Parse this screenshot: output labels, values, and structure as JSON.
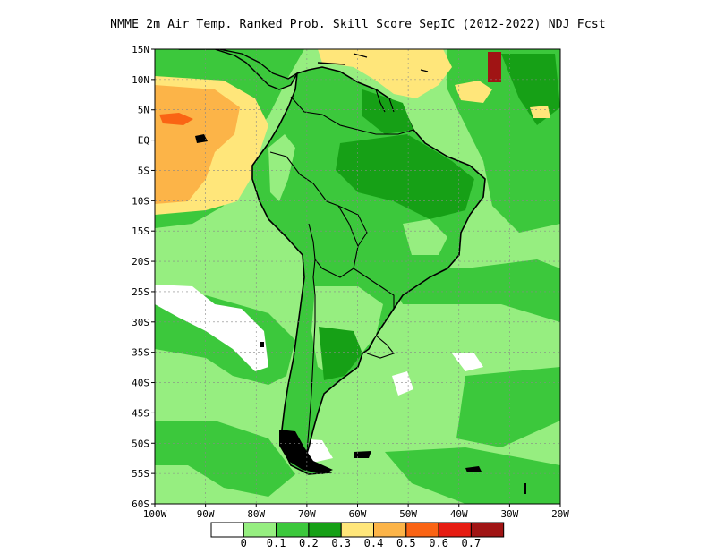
{
  "title": "NMME  2m Air Temp. Ranked Prob. Skill Score SepIC (2012-2022) NDJ Fcst",
  "map": {
    "lat_labels": [
      "15N",
      "10N",
      "5N",
      "EQ",
      "5S",
      "10S",
      "15S",
      "20S",
      "25S",
      "30S",
      "35S",
      "40S",
      "45S",
      "50S",
      "55S",
      "60S"
    ],
    "lon_labels": [
      "100W",
      "90W",
      "80W",
      "70W",
      "60W",
      "50W",
      "40W",
      "30W",
      "20W"
    ],
    "lat_range": [
      15,
      -60
    ],
    "lon_range": [
      -100,
      -20
    ],
    "grid": true
  },
  "legend": {
    "colors": [
      "#ffffff",
      "#96ee80",
      "#3cc83c",
      "#16a016",
      "#ffe67a",
      "#fcb448",
      "#fa6414",
      "#e61c12",
      "#a01414"
    ],
    "labels": [
      "0",
      "0.1",
      "0.2",
      "0.3",
      "0.4",
      "0.5",
      "0.6",
      "0.7"
    ]
  },
  "colors": {
    "ocean_base": "#96ee80",
    "land_base": "#3cc83c",
    "coast": "#000000"
  }
}
